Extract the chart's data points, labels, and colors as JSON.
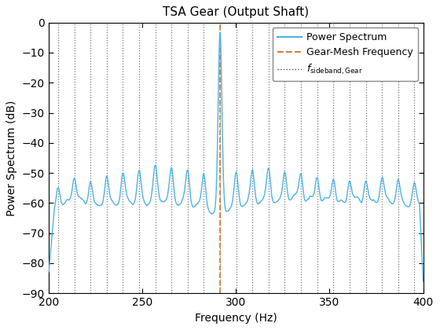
{
  "title": "TSA Gear (Output Shaft)",
  "xlabel": "Frequency (Hz)",
  "ylabel": "Power Spectrum (dB)",
  "xlim": [
    200,
    400
  ],
  "ylim": [
    -90,
    0
  ],
  "yticks": [
    0,
    -10,
    -20,
    -30,
    -40,
    -50,
    -60,
    -70,
    -80,
    -90
  ],
  "xticks": [
    200,
    250,
    300,
    350,
    400
  ],
  "gear_mesh_freq": 291.5,
  "shaft_freq": 8.65,
  "sideband_color": "#555555",
  "gear_mesh_color": "#d4813a",
  "power_spectrum_color": "#4db3e6",
  "background_color": "#ffffff",
  "legend_labels": [
    "Power Spectrum",
    "Gear-Mesh Frequency",
    "f_{sideband,Gear}"
  ],
  "seed": 7,
  "n_points": 4000,
  "line_width": 1.0,
  "title_fontsize": 11,
  "axis_fontsize": 10,
  "tick_fontsize": 10
}
